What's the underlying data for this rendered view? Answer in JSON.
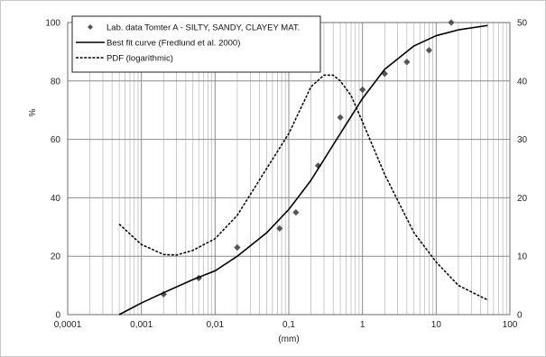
{
  "chart_data": {
    "type": "scatter",
    "x_scale": "log",
    "xlim": [
      0.0001,
      100
    ],
    "x_ticks": [
      "0,0001",
      "0,001",
      "0,01",
      "0,1",
      "1",
      "10",
      "100"
    ],
    "xlabel": "(mm)",
    "ylim_left": [
      0,
      100
    ],
    "y_left_ticks": [
      "0",
      "20",
      "40",
      "60",
      "80",
      "100"
    ],
    "ylabel_left": "%",
    "ylim_right": [
      0,
      50
    ],
    "y_right_ticks": [
      "0",
      "10",
      "20",
      "30",
      "40",
      "50"
    ],
    "grid": true,
    "legend_position": "top-left",
    "series": [
      {
        "name": "Lab. data  Tomter A - SILTY, SANDY, CLAYEY MAT.",
        "axis": "left",
        "style": "markers",
        "color": "#555555",
        "points": [
          [
            0.002,
            7
          ],
          [
            0.006,
            12.5
          ],
          [
            0.02,
            23
          ],
          [
            0.075,
            29.5
          ],
          [
            0.125,
            35
          ],
          [
            0.25,
            51
          ],
          [
            0.5,
            67.5
          ],
          [
            1,
            77
          ],
          [
            2,
            82.5
          ],
          [
            4,
            86.5
          ],
          [
            8,
            90.5
          ],
          [
            16,
            100
          ]
        ]
      },
      {
        "name": "Best fit curve (Fredlund et al. 2000)",
        "axis": "left",
        "style": "solid",
        "color": "#000000",
        "points": [
          [
            0.0005,
            0
          ],
          [
            0.001,
            4
          ],
          [
            0.002,
            7.5
          ],
          [
            0.005,
            12
          ],
          [
            0.01,
            15
          ],
          [
            0.02,
            20
          ],
          [
            0.05,
            28
          ],
          [
            0.1,
            36
          ],
          [
            0.2,
            46
          ],
          [
            0.5,
            62
          ],
          [
            1,
            74
          ],
          [
            2,
            84
          ],
          [
            5,
            92
          ],
          [
            10,
            95.5
          ],
          [
            20,
            97.5
          ],
          [
            50,
            99
          ]
        ]
      },
      {
        "name": "PDF (logarithmic)",
        "axis": "right",
        "style": "dashed",
        "color": "#000000",
        "points": [
          [
            0.0005,
            15.5
          ],
          [
            0.001,
            12
          ],
          [
            0.002,
            10.3
          ],
          [
            0.003,
            10.2
          ],
          [
            0.005,
            11
          ],
          [
            0.01,
            13
          ],
          [
            0.02,
            17
          ],
          [
            0.05,
            25
          ],
          [
            0.1,
            31
          ],
          [
            0.2,
            39
          ],
          [
            0.3,
            41
          ],
          [
            0.4,
            41
          ],
          [
            0.5,
            40
          ],
          [
            0.7,
            37.5
          ],
          [
            1,
            33
          ],
          [
            2,
            24
          ],
          [
            5,
            14
          ],
          [
            10,
            9
          ],
          [
            20,
            5
          ],
          [
            50,
            2.5
          ]
        ]
      }
    ]
  }
}
